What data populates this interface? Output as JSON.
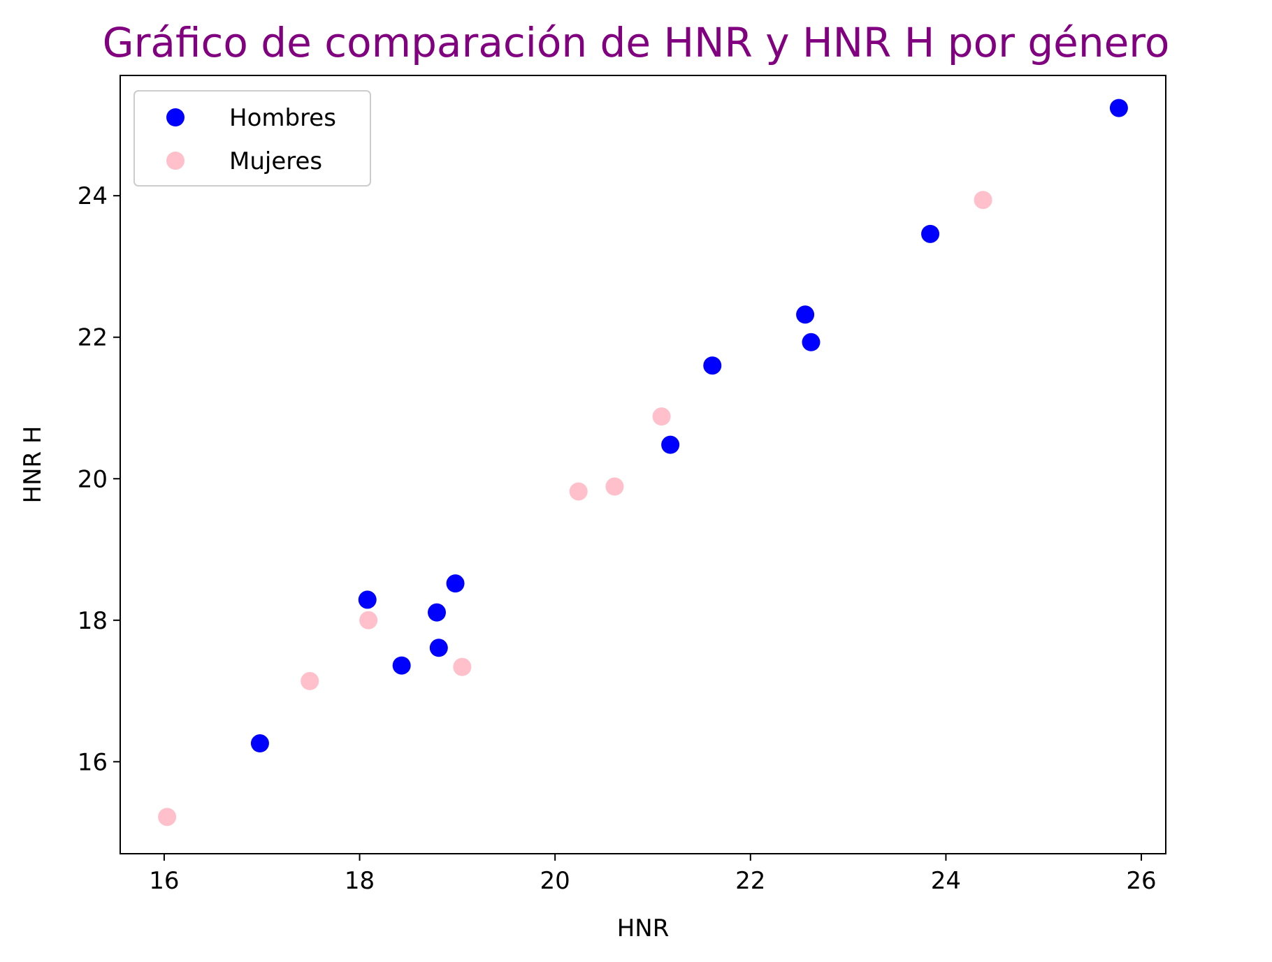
{
  "chart_data": {
    "type": "scatter",
    "title": "Gráfico de comparación de HNR y HNR H por género",
    "title_color": "#800080",
    "xlabel": "HNR",
    "ylabel": "HNR H",
    "xlim": [
      15.55,
      26.25
    ],
    "ylim": [
      14.7,
      25.7
    ],
    "xticks": [
      16,
      18,
      20,
      22,
      24,
      26
    ],
    "yticks": [
      16,
      18,
      20,
      22,
      24
    ],
    "grid": false,
    "legend_position": "top-left",
    "series": [
      {
        "name": "Hombres",
        "color": "#0000ff",
        "points": [
          [
            16.98,
            16.26
          ],
          [
            18.08,
            18.29
          ],
          [
            18.43,
            17.36
          ],
          [
            18.79,
            18.11
          ],
          [
            18.81,
            17.61
          ],
          [
            18.98,
            18.52
          ],
          [
            21.18,
            20.48
          ],
          [
            21.61,
            21.6
          ],
          [
            22.56,
            22.32
          ],
          [
            22.62,
            21.93
          ],
          [
            23.84,
            23.46
          ],
          [
            25.77,
            25.24
          ]
        ]
      },
      {
        "name": "Mujeres",
        "color": "#ffc0cb",
        "points": [
          [
            16.03,
            15.22
          ],
          [
            17.49,
            17.14
          ],
          [
            18.09,
            18.0
          ],
          [
            19.05,
            17.34
          ],
          [
            20.24,
            19.82
          ],
          [
            20.61,
            19.89
          ],
          [
            21.09,
            20.88
          ],
          [
            24.38,
            23.94
          ]
        ]
      }
    ]
  }
}
